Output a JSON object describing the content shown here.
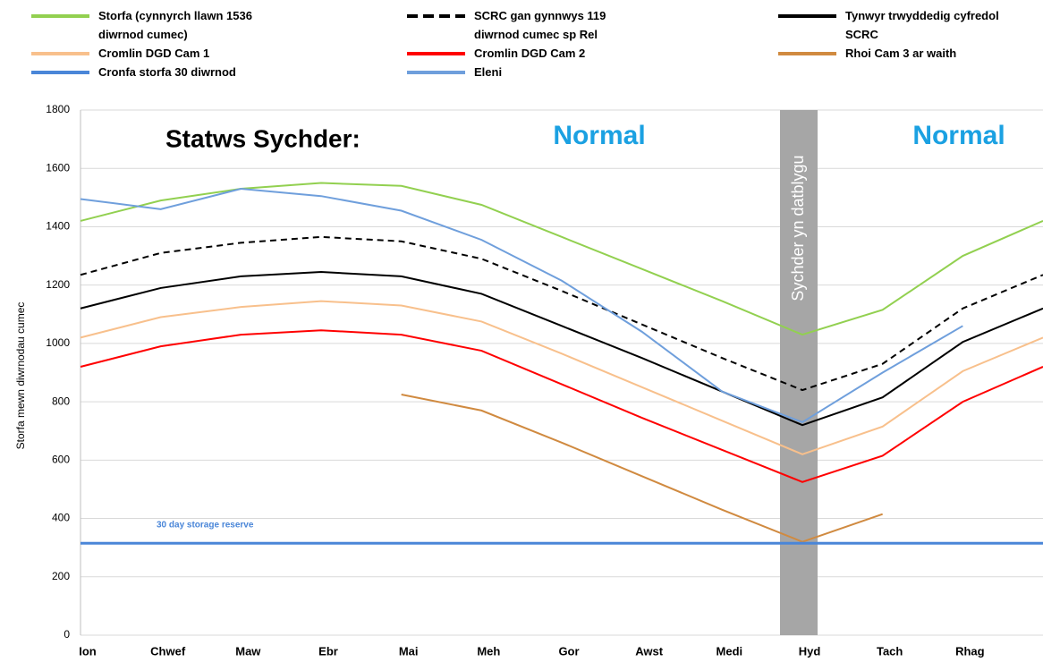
{
  "chart_data": {
    "type": "line",
    "ylabel": "Storfa mewn diwrnodau cumec",
    "status_label": "Statws Sychder:",
    "status_values": [
      "Normal",
      "Normal"
    ],
    "band_label": "Sychder yn datblygu",
    "reserve_label": "30 day storage reserve",
    "categories": [
      "Ion",
      "Chwef",
      "Maw",
      "Ebr",
      "Mai",
      "Meh",
      "Gor",
      "Awst",
      "Medi",
      "Hyd",
      "Tach",
      "Rhag",
      null
    ],
    "ylim": [
      0,
      1800
    ],
    "yticks": [
      0,
      200,
      400,
      600,
      800,
      1000,
      1200,
      1400,
      1600,
      1800
    ],
    "grid": true,
    "series": [
      {
        "name": "Storfa (cynnyrch llawn 1536 diwrnod cumec)",
        "color": "#92d050",
        "values": [
          1420,
          1490,
          1530,
          1550,
          1540,
          1475,
          1365,
          1255,
          1145,
          1030,
          1115,
          1300,
          1420
        ]
      },
      {
        "name": "SCRC gan gynnwys 119 diwrnod cumec sp Rel",
        "color": "#000000",
        "dash": true,
        "values": [
          1235,
          1310,
          1345,
          1365,
          1350,
          1290,
          1180,
          1065,
          950,
          840,
          930,
          1120,
          1235
        ]
      },
      {
        "name": "Tynwyr trwyddedig cyfredol SCRC",
        "color": "#000000",
        "values": [
          1120,
          1190,
          1230,
          1245,
          1230,
          1170,
          1060,
          950,
          835,
          720,
          815,
          1005,
          1120
        ]
      },
      {
        "name": "Cromlin DGD Cam 1",
        "color": "#f8c08c",
        "values": [
          1020,
          1090,
          1125,
          1145,
          1130,
          1075,
          965,
          850,
          735,
          620,
          715,
          905,
          1020
        ]
      },
      {
        "name": "Cromlin DGD Cam 2",
        "color": "#ff0000",
        "values": [
          920,
          990,
          1030,
          1045,
          1030,
          975,
          860,
          745,
          635,
          525,
          615,
          800,
          920
        ]
      },
      {
        "name": "Rhoi Cam 3 ar waith",
        "color": "#d08a40",
        "values": [
          null,
          null,
          null,
          null,
          825,
          770,
          660,
          545,
          430,
          320,
          415,
          null,
          null
        ]
      },
      {
        "name": "Cronfa storfa 30 diwrnod",
        "color": "#4a86d8",
        "values": [
          315,
          315,
          315,
          315,
          315,
          315,
          315,
          315,
          315,
          315,
          315,
          315,
          315
        ]
      },
      {
        "name": "Eleni",
        "color": "#6f9fdc",
        "values": [
          1495,
          1460,
          1530,
          1505,
          1455,
          1355,
          1215,
          1040,
          835,
          730,
          900,
          1060,
          null
        ]
      }
    ]
  }
}
